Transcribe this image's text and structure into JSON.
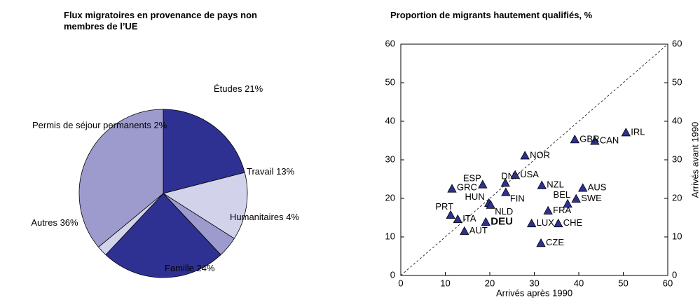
{
  "chart_data": [
    {
      "type": "pie",
      "title": "Flux migratoires en provenance de pays non membres de l’UE",
      "categories": [
        "Études",
        "Travail",
        "Humanitaires",
        "Famille",
        "Permis de séjour permanents",
        "Autres"
      ],
      "values": [
        21,
        13,
        4,
        24,
        2,
        36
      ],
      "value_labels": [
        "21%",
        "13%",
        "4%",
        "24%",
        "2%",
        "36%"
      ],
      "colors": [
        "#2e3192",
        "#d2d2ea",
        "#9d9bcd",
        "#2e3192",
        "#d2d2ea",
        "#9d9bcd"
      ]
    },
    {
      "type": "scatter",
      "title": "Proportion de migrants hautement qualifiés, %",
      "x_label": "Arrivés après 1990",
      "y2_label": "Arrivés avant 1990",
      "xlim": [
        0,
        60
      ],
      "ylim": [
        0,
        60
      ],
      "y2lim": [
        0,
        60
      ],
      "xticks": [
        0,
        10,
        20,
        30,
        40,
        50,
        60
      ],
      "yticks": [
        0,
        10,
        20,
        30,
        40,
        50,
        60
      ],
      "y2ticks": [
        0,
        10,
        20,
        30,
        40,
        50,
        60
      ],
      "color": "#2e3192",
      "labels": [
        "IRL",
        "CAN",
        "GBR",
        "NOR",
        "NZL",
        "GRC",
        "ESP",
        "DNK",
        "USA",
        "FIN",
        "HUN",
        "NLD",
        "AUS",
        "BEL",
        "SWE",
        "FRA",
        "PRT",
        "ITA",
        "DEU",
        "LUX",
        "CHE",
        "AUT",
        "CZE"
      ],
      "x": [
        50.6,
        43.6,
        39.1,
        27.9,
        31.7,
        11.5,
        18.4,
        23.5,
        25.7,
        23.6,
        19.8,
        20.2,
        40.9,
        37.5,
        39.4,
        33.1,
        11.2,
        12.8,
        19.1,
        29.4,
        35.4,
        14.3,
        31.5
      ],
      "y": [
        37.1,
        34.9,
        35.3,
        31.1,
        23.4,
        22.5,
        23.6,
        24.0,
        26.1,
        21.6,
        18.8,
        18.3,
        22.7,
        18.6,
        19.9,
        16.8,
        15.7,
        14.6,
        13.9,
        13.5,
        13.5,
        11.5,
        8.4
      ]
    }
  ]
}
